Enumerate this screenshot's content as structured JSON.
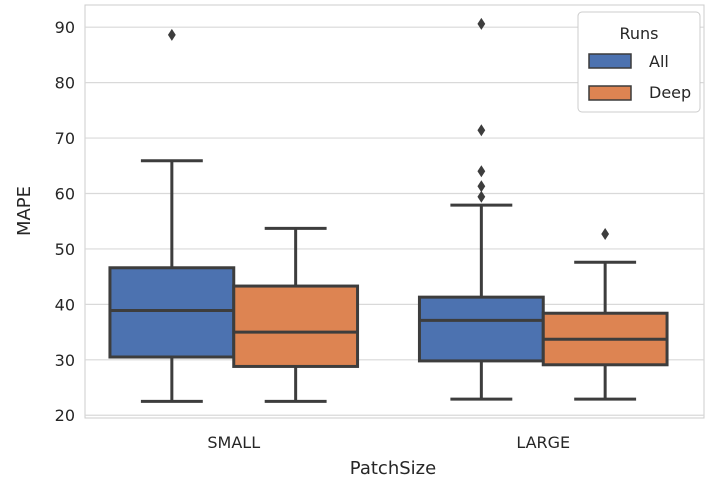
{
  "chart_data": {
    "type": "box",
    "title": "",
    "xlabel": "PatchSize",
    "ylabel": "MAPE",
    "ylim": [
      19.5,
      94
    ],
    "yticks": [
      20,
      30,
      40,
      50,
      60,
      70,
      80,
      90
    ],
    "grid": true,
    "legend_position": "top-right",
    "legend_title": "Runs",
    "categories": [
      "SMALL",
      "LARGE"
    ],
    "series": [
      {
        "name": "All",
        "color": "#4c72b0",
        "boxes": [
          {
            "whisker_low": 22.5,
            "q1": 30.5,
            "median": 38.9,
            "q3": 46.6,
            "whisker_high": 65.9,
            "outliers": [
              88.6
            ]
          },
          {
            "whisker_low": 22.9,
            "q1": 29.8,
            "median": 37.1,
            "q3": 41.3,
            "whisker_high": 57.9,
            "outliers": [
              59.4,
              61.3,
              64.0,
              71.4,
              90.6
            ]
          }
        ]
      },
      {
        "name": "Deep",
        "color": "#dd8452",
        "boxes": [
          {
            "whisker_low": 22.5,
            "q1": 28.8,
            "median": 35.0,
            "q3": 43.3,
            "whisker_high": 53.7,
            "outliers": []
          },
          {
            "whisker_low": 22.9,
            "q1": 29.1,
            "median": 33.7,
            "q3": 38.4,
            "whisker_high": 47.6,
            "outliers": [
              52.7
            ]
          }
        ]
      }
    ]
  }
}
